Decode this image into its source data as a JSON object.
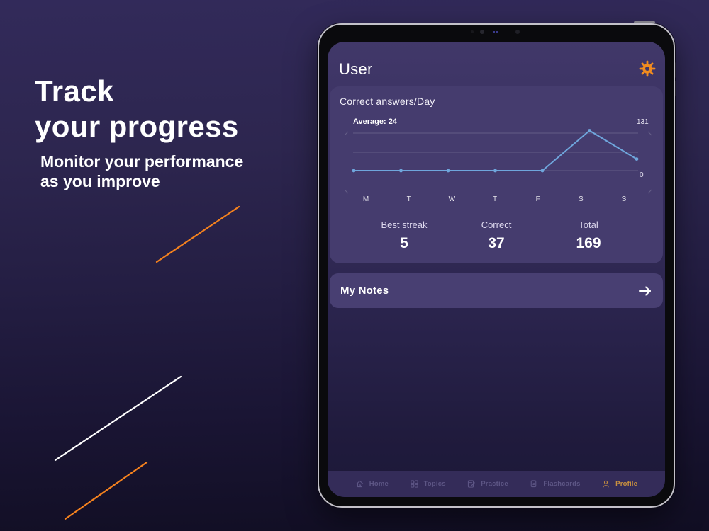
{
  "hero": {
    "title_line1": "Track",
    "title_line2": "your progress",
    "subtitle_line1": "Monitor your performance",
    "subtitle_line2": "as you improve"
  },
  "device": {
    "header": {
      "title": "User",
      "settings_icon": "gear-icon"
    }
  },
  "chart_data": {
    "type": "line",
    "title": "Correct answers/Day",
    "x": [
      "M",
      "T",
      "W",
      "T",
      "F",
      "S",
      "S"
    ],
    "values": [
      0,
      0,
      0,
      0,
      0,
      131,
      38
    ],
    "average": 24,
    "average_label": "Average: 24",
    "ymax_label": "131",
    "ymin_label": "0",
    "ylim": [
      0,
      131
    ],
    "grid": true,
    "legend": "none"
  },
  "stats": [
    {
      "label": "Best streak",
      "value": "5"
    },
    {
      "label": "Correct",
      "value": "37"
    },
    {
      "label": "Total",
      "value": "169"
    }
  ],
  "notes": {
    "title": "My Notes",
    "arrow_icon": "arrow-right-icon"
  },
  "tabbar": {
    "items": [
      {
        "label": "Home",
        "icon": "home-icon",
        "active": false
      },
      {
        "label": "Topics",
        "icon": "topics-grid-icon",
        "active": false
      },
      {
        "label": "Practice",
        "icon": "practice-icon",
        "active": false
      },
      {
        "label": "Flashcards",
        "icon": "flashcards-icon",
        "active": false
      },
      {
        "label": "Profile",
        "icon": "profile-icon",
        "active": true
      }
    ]
  },
  "colors": {
    "accent": "#f18c1f",
    "tab_active": "#c9913f",
    "chart_line": "#6fa6dc",
    "hero_text": "#ffffff",
    "card_bg": "#453c6e",
    "deco_orange": "#f5821e",
    "deco_white": "#ffffff"
  }
}
